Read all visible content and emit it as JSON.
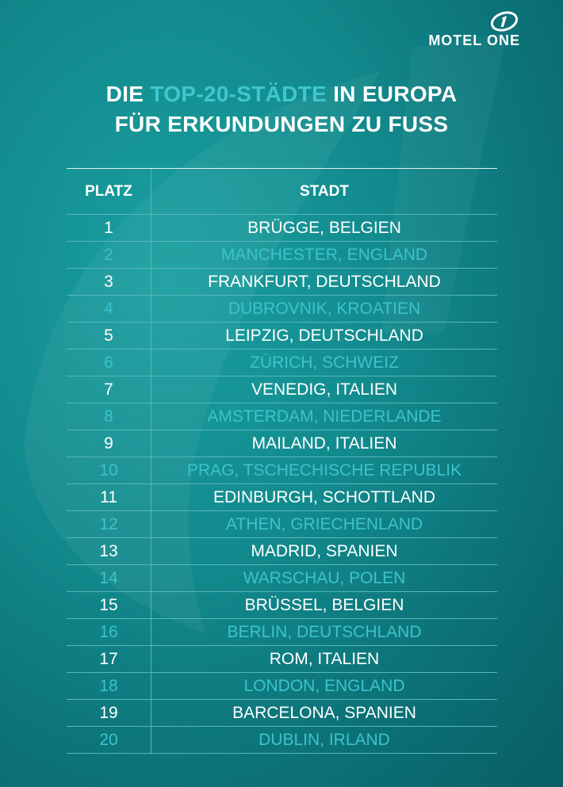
{
  "brand": {
    "name": "MOTEL ONE"
  },
  "title": {
    "line1_pre": "DIE ",
    "line1_accent": "TOP-20-STÄDTE",
    "line1_post": " IN EUROPA",
    "line2": "FÜR ERKUNDUNGEN ZU FUSS"
  },
  "table": {
    "headers": {
      "rank": "PLATZ",
      "city": "STADT"
    },
    "rows": [
      {
        "rank": "1",
        "city": "BRÜGGE, BELGIEN"
      },
      {
        "rank": "2",
        "city": "MANCHESTER, ENGLAND"
      },
      {
        "rank": "3",
        "city": "FRANKFURT, DEUTSCHLAND"
      },
      {
        "rank": "4",
        "city": "DUBROVNIK, KROATIEN"
      },
      {
        "rank": "5",
        "city": "LEIPZIG, DEUTSCHLAND"
      },
      {
        "rank": "6",
        "city": "ZÜRICH, SCHWEIZ"
      },
      {
        "rank": "7",
        "city": "VENEDIG, ITALIEN"
      },
      {
        "rank": "8",
        "city": "AMSTERDAM, NIEDERLANDE"
      },
      {
        "rank": "9",
        "city": "MAILAND, ITALIEN"
      },
      {
        "rank": "10",
        "city": "PRAG, TSCHECHISCHE REPUBLIK"
      },
      {
        "rank": "11",
        "city": "EDINBURGH, SCHOTTLAND"
      },
      {
        "rank": "12",
        "city": "ATHEN, GRIECHENLAND"
      },
      {
        "rank": "13",
        "city": "MADRID, SPANIEN"
      },
      {
        "rank": "14",
        "city": "WARSCHAU, POLEN"
      },
      {
        "rank": "15",
        "city": "BRÜSSEL, BELGIEN"
      },
      {
        "rank": "16",
        "city": "BERLIN, DEUTSCHLAND"
      },
      {
        "rank": "17",
        "city": "ROM, ITALIEN"
      },
      {
        "rank": "18",
        "city": "LONDON, ENGLAND"
      },
      {
        "rank": "19",
        "city": "BARCELONA, SPANIEN"
      },
      {
        "rank": "20",
        "city": "DUBLIN, IRLAND"
      }
    ]
  },
  "colors": {
    "background": "#128a8d",
    "accent": "#3fc6cf",
    "text": "#ffffff"
  }
}
